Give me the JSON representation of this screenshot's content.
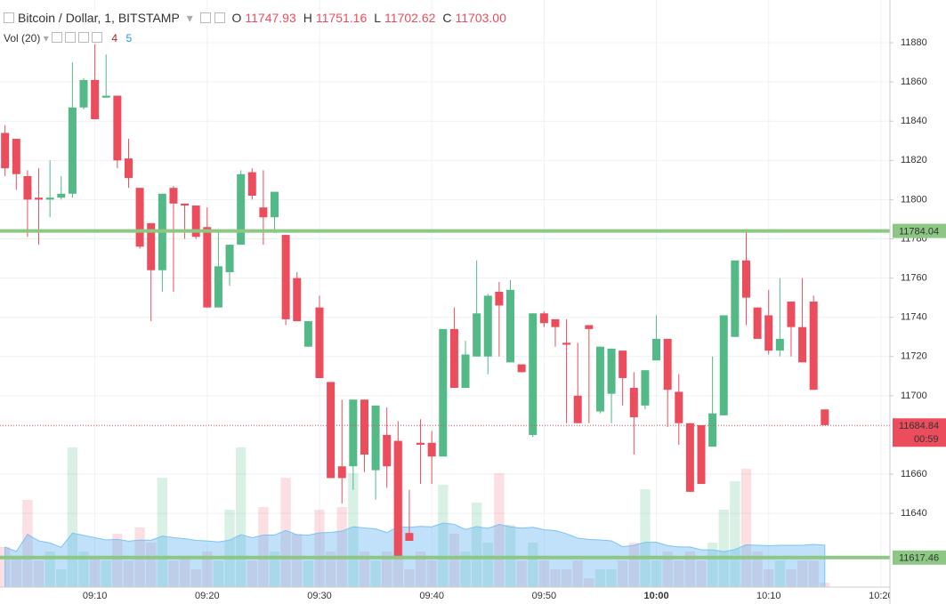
{
  "chart_data": {
    "type": "candlestick",
    "title": "Bitcoin / Dollar, 1, BITSTAMP",
    "ohlc_legend": [
      {
        "name": "O",
        "value": "11747.93"
      },
      {
        "name": "H",
        "value": "11751.16"
      },
      {
        "name": "L",
        "value": "11702.62"
      },
      {
        "name": "C",
        "value": "11703.00"
      }
    ],
    "up_color": "#53b987",
    "down_color": "#eb4d5c",
    "open": [
      11834,
      11831,
      11812,
      11801,
      11800,
      11801,
      11803,
      11847,
      11861,
      11852,
      11853,
      11821,
      11806,
      11788,
      11764,
      11806,
      11798,
      11797,
      11786,
      11745,
      11763,
      11777,
      11814,
      11796,
      11791,
      11782,
      11760,
      11725,
      11745,
      11707,
      11664,
      11664,
      11698,
      11662,
      11680,
      11677,
      11630,
      11676,
      11676,
      11669,
      11734,
      11704,
      11720,
      11720,
      11753,
      11717,
      11716,
      11680,
      11742,
      11739,
      11727,
      11700,
      11736,
      11692,
      11701,
      11723,
      11704,
      11695,
      11718,
      11729,
      11702,
      11686,
      11685,
      11674,
      11690,
      11730,
      11769,
      11745,
      11741,
      11723,
      11748,
      11735,
      11748,
      11693
    ],
    "high": [
      11838,
      11831,
      11815,
      11816,
      11820,
      11812,
      11870,
      11862,
      11881,
      11874,
      11853,
      11831,
      11806,
      11788,
      11803,
      11807,
      11798,
      11797,
      11796,
      11785,
      11777,
      11815,
      11816,
      11815,
      11804,
      11782,
      11763,
      11738,
      11751,
      11707,
      11698,
      11698,
      11698,
      11695,
      11694,
      11687,
      11652,
      11688,
      11682,
      11734,
      11745,
      11728,
      11769,
      11752,
      11758,
      11759,
      11716,
      11742,
      11743,
      11739,
      11739,
      11727,
      11736,
      11725,
      11724,
      11723,
      11712,
      11713,
      11741,
      11729,
      11711,
      11686,
      11685,
      11720,
      11741,
      11769,
      11785,
      11745,
      11754,
      11760,
      11748,
      11760,
      11751,
      11693
    ],
    "low": [
      11812,
      11805,
      11781,
      11777,
      11791,
      11800,
      11801,
      11846,
      11841,
      11852,
      11816,
      11806,
      11775,
      11738,
      11753,
      11753,
      11780,
      11780,
      11745,
      11745,
      11756,
      11777,
      11800,
      11777,
      11783,
      11736,
      11738,
      11725,
      11709,
      11658,
      11645,
      11652,
      11661,
      11647,
      11653,
      11618,
      11626,
      11655,
      11655,
      11669,
      11704,
      11704,
      11720,
      11711,
      11720,
      11717,
      11712,
      11679,
      11735,
      11725,
      11686,
      11686,
      11686,
      11691,
      11686,
      11695,
      11670,
      11693,
      11718,
      11684,
      11675,
      11651,
      11655,
      11674,
      11690,
      11730,
      11736,
      11729,
      11721,
      11720,
      11720,
      11717,
      11703,
      11685
    ],
    "close": [
      11816,
      11813,
      11800,
      11800,
      11801,
      11803,
      11847,
      11861,
      11841,
      11853,
      11820,
      11811,
      11776,
      11764,
      11803,
      11798,
      11797,
      11781,
      11745,
      11766,
      11777,
      11813,
      11802,
      11791,
      11804,
      11739,
      11738,
      11738,
      11709,
      11658,
      11658,
      11698,
      11670,
      11695,
      11664,
      11618,
      11626,
      11675,
      11669,
      11734,
      11704,
      11721,
      11742,
      11751,
      11746,
      11754,
      11712,
      11742,
      11737,
      11735,
      11726,
      11686,
      11734,
      11725,
      11724,
      11709,
      11689,
      11713,
      11729,
      11703,
      11686,
      11651,
      11655,
      11691,
      11741,
      11769,
      11750,
      11729,
      11723,
      11729,
      11735,
      11717,
      11703,
      11685
    ],
    "volume": {
      "name": "Vol (20)",
      "legend_values": [
        4,
        5
      ],
      "values": [
        45,
        35,
        98,
        30,
        40,
        20,
        157,
        40,
        35,
        30,
        60,
        30,
        67,
        50,
        123,
        30,
        35,
        20,
        40,
        30,
        87,
        157,
        30,
        90,
        40,
        123,
        60,
        30,
        87,
        40,
        90,
        128,
        40,
        30,
        40,
        163,
        20,
        40,
        30,
        115,
        60,
        40,
        95,
        50,
        128,
        70,
        30,
        50,
        30,
        20,
        20,
        30,
        10,
        20,
        20,
        30,
        50,
        110,
        30,
        40,
        30,
        40,
        30,
        50,
        87,
        119,
        133,
        40,
        20,
        30,
        20,
        30,
        30,
        5
      ],
      "ylim": [
        0,
        660
      ],
      "ma_period": 20
    },
    "xlim": [
      -0.45,
      78.8
    ],
    "xticks": [
      {
        "value": 8,
        "label": "09:10"
      },
      {
        "value": 18,
        "label": "09:20"
      },
      {
        "value": 28,
        "label": "09:30"
      },
      {
        "value": 38,
        "label": "09:40"
      },
      {
        "value": 48,
        "label": "09:50"
      },
      {
        "value": 58,
        "label": "10:00"
      },
      {
        "value": 68,
        "label": "10:10"
      },
      {
        "value": 78,
        "label": "10:20"
      }
    ],
    "ylim": [
      11602.4,
      11901.8
    ],
    "yticks": [
      11640,
      11660,
      11700,
      11720,
      11740,
      11760,
      11780,
      11800,
      11820,
      11840,
      11860,
      11880
    ],
    "grid": true,
    "hlines": [
      {
        "value": 11784.04,
        "label": "11784.04",
        "color": "#8cc784"
      },
      {
        "value": 11617.46,
        "label": "11617.46",
        "color": "#8cc784"
      }
    ],
    "last_price": {
      "value": 11684.84,
      "label": "11684.84",
      "countdown": "00:59",
      "color": "#eb4d5c"
    }
  }
}
